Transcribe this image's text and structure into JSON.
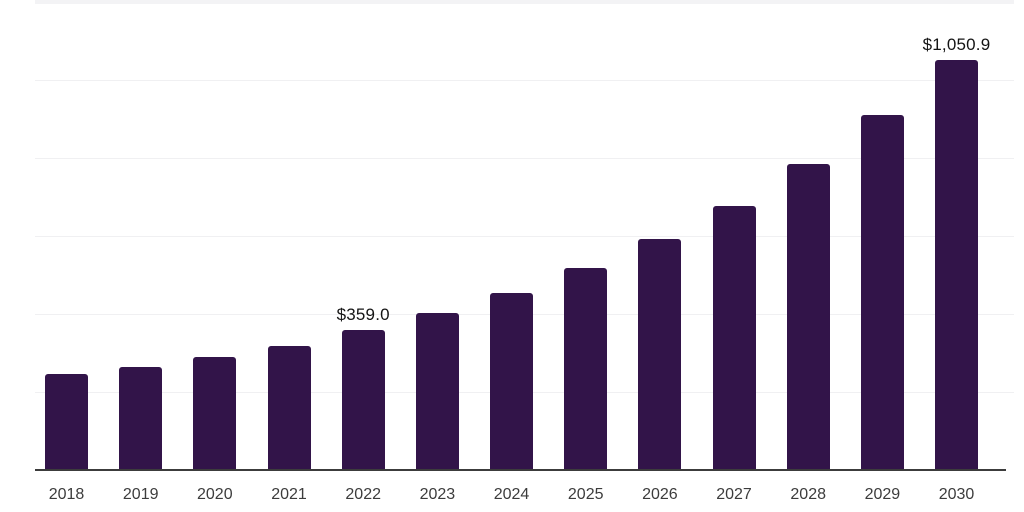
{
  "chart_data": {
    "type": "bar",
    "title": "",
    "xlabel": "",
    "ylabel": "",
    "categories": [
      "2018",
      "2019",
      "2020",
      "2021",
      "2022",
      "2023",
      "2024",
      "2025",
      "2026",
      "2027",
      "2028",
      "2029",
      "2030"
    ],
    "values": [
      246,
      264,
      290,
      318,
      359.0,
      403,
      455,
      519,
      592,
      677,
      785,
      910,
      1050.9
    ],
    "data_labels": {
      "2022": "$359.0",
      "2030": "$1,050.9"
    },
    "ylim": [
      0,
      1200
    ],
    "gridline_step": 200,
    "grid": true,
    "legend": false,
    "y_axis_tick_labels_visible": false,
    "currency_prefix": "$"
  },
  "colors": {
    "bar": "#321449",
    "grid": "#f0f0f2",
    "axis": "#3c3c3c",
    "data_label": "#141414",
    "tick_label": "#3c3c3c",
    "top_strip": "#f3f3f5",
    "background": "#ffffff"
  }
}
